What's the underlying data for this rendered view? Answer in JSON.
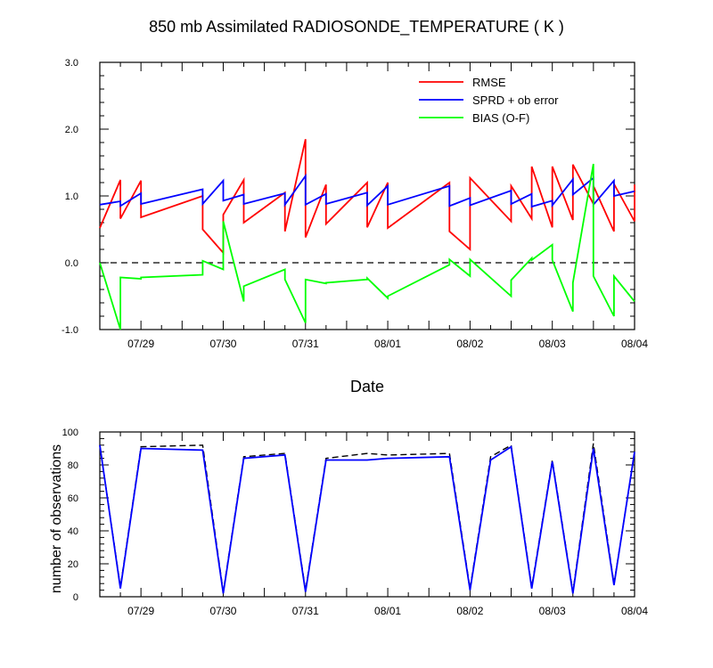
{
  "title": "850 mb Assimilated RADIOSONDE_TEMPERATURE ( K )",
  "chart_data": [
    {
      "type": "line",
      "title": "850 mb Assimilated RADIOSONDE_TEMPERATURE ( K )",
      "xlabel": "Date",
      "ylabel": "",
      "ylim": [
        -1.0,
        3.0
      ],
      "yticks": [
        "-1.0",
        "0.0",
        "1.0",
        "2.0",
        "3.0"
      ],
      "xticks": [
        "07/29",
        "07/30",
        "07/31",
        "08/01",
        "08/02",
        "08/03",
        "08/04"
      ],
      "xlim": [
        "2023-07-28T12:00",
        "2023-08-04T00:00"
      ],
      "reference_line": {
        "y": 0.0,
        "style": "dashed",
        "color": "#000000"
      },
      "legend_position": "top-right",
      "grid": false,
      "series": [
        {
          "name": "RMSE",
          "color": "#ff0000",
          "x": [
            "2023-07-28T12:00",
            "2023-07-28T18:00",
            "2023-07-28T18:00",
            "2023-07-29T00:00",
            "2023-07-29T00:00",
            "2023-07-29T18:00",
            "2023-07-29T18:00",
            "2023-07-30T00:00",
            "2023-07-30T00:00",
            "2023-07-30T06:00",
            "2023-07-30T06:00",
            "2023-07-30T18:00",
            "2023-07-30T18:00",
            "2023-07-31T00:00",
            "2023-07-31T00:00",
            "2023-07-31T06:00",
            "2023-07-31T06:00",
            "2023-07-31T18:00",
            "2023-07-31T18:00",
            "2023-08-01T00:00",
            "2023-08-01T00:00",
            "2023-08-01T18:00",
            "2023-08-01T18:00",
            "2023-08-02T00:00",
            "2023-08-02T00:00",
            "2023-08-02T12:00",
            "2023-08-02T12:00",
            "2023-08-02T18:00",
            "2023-08-02T18:00",
            "2023-08-03T00:00",
            "2023-08-03T00:00",
            "2023-08-03T06:00",
            "2023-08-03T06:00",
            "2023-08-03T12:00",
            "2023-08-03T12:00",
            "2023-08-03T18:00",
            "2023-08-03T18:00",
            "2023-08-04T00:00",
            "2023-08-04T00:00"
          ],
          "y": [
            0.52,
            1.24,
            0.66,
            1.23,
            0.68,
            1.0,
            0.5,
            0.15,
            0.72,
            1.24,
            0.6,
            1.05,
            0.47,
            1.85,
            0.38,
            1.17,
            0.58,
            1.2,
            0.53,
            1.2,
            0.52,
            1.2,
            0.47,
            0.2,
            1.27,
            0.62,
            1.15,
            0.66,
            1.44,
            0.53,
            1.44,
            0.64,
            1.47,
            0.88,
            1.15,
            0.47,
            1.18,
            0.62,
            1.17
          ]
        },
        {
          "name": "SPRD + ob error",
          "color": "#0000ff",
          "x": [
            "2023-07-28T12:00",
            "2023-07-28T18:00",
            "2023-07-28T18:00",
            "2023-07-29T00:00",
            "2023-07-29T00:00",
            "2023-07-29T18:00",
            "2023-07-29T18:00",
            "2023-07-30T00:00",
            "2023-07-30T00:00",
            "2023-07-30T06:00",
            "2023-07-30T06:00",
            "2023-07-30T18:00",
            "2023-07-30T18:00",
            "2023-07-31T00:00",
            "2023-07-31T00:00",
            "2023-07-31T06:00",
            "2023-07-31T06:00",
            "2023-07-31T18:00",
            "2023-07-31T18:00",
            "2023-08-01T00:00",
            "2023-08-01T00:00",
            "2023-08-01T18:00",
            "2023-08-01T18:00",
            "2023-08-02T00:00",
            "2023-08-02T00:00",
            "2023-08-02T12:00",
            "2023-08-02T12:00",
            "2023-08-02T18:00",
            "2023-08-02T18:00",
            "2023-08-03T00:00",
            "2023-08-03T00:00",
            "2023-08-03T06:00",
            "2023-08-03T06:00",
            "2023-08-03T12:00",
            "2023-08-03T12:00",
            "2023-08-03T18:00",
            "2023-08-03T18:00",
            "2023-08-04T00:00"
          ],
          "y": [
            0.87,
            0.92,
            0.85,
            1.04,
            0.88,
            1.1,
            0.88,
            1.23,
            0.93,
            1.02,
            0.88,
            1.04,
            0.87,
            1.3,
            0.87,
            1.03,
            0.88,
            1.05,
            0.86,
            1.15,
            0.87,
            1.15,
            0.85,
            0.97,
            0.86,
            1.08,
            0.88,
            1.03,
            0.84,
            0.93,
            0.86,
            1.25,
            1.02,
            1.27,
            0.87,
            1.23,
            1.0,
            1.07
          ]
        },
        {
          "name": "BIAS (O-F)",
          "color": "#00ff00",
          "x": [
            "2023-07-28T12:00",
            "2023-07-28T18:00",
            "2023-07-28T18:00",
            "2023-07-29T00:00",
            "2023-07-29T00:00",
            "2023-07-29T18:00",
            "2023-07-29T18:00",
            "2023-07-30T00:00",
            "2023-07-30T00:00",
            "2023-07-30T06:00",
            "2023-07-30T06:00",
            "2023-07-30T18:00",
            "2023-07-30T18:00",
            "2023-07-31T00:00",
            "2023-07-31T00:00",
            "2023-07-31T06:00",
            "2023-07-31T06:00",
            "2023-07-31T18:00",
            "2023-07-31T18:00",
            "2023-08-01T00:00",
            "2023-08-01T00:00",
            "2023-08-01T18:00",
            "2023-08-01T18:00",
            "2023-08-02T00:00",
            "2023-08-02T00:00",
            "2023-08-02T12:00",
            "2023-08-02T12:00",
            "2023-08-02T18:00",
            "2023-08-02T18:00",
            "2023-08-03T00:00",
            "2023-08-03T00:00",
            "2023-08-03T06:00",
            "2023-08-03T06:00",
            "2023-08-03T12:00",
            "2023-08-03T12:00",
            "2023-08-03T18:00",
            "2023-08-03T18:00",
            "2023-08-04T00:00"
          ],
          "y": [
            0.0,
            -1.0,
            -0.22,
            -0.24,
            -0.22,
            -0.18,
            0.03,
            -0.1,
            0.62,
            -0.58,
            -0.35,
            -0.1,
            -0.25,
            -0.9,
            -0.25,
            -0.31,
            -0.3,
            -0.25,
            -0.23,
            -0.53,
            -0.5,
            -0.03,
            0.05,
            -0.2,
            0.05,
            -0.5,
            -0.26,
            0.07,
            0.04,
            0.27,
            0.04,
            -0.73,
            -0.3,
            1.48,
            -0.2,
            -0.8,
            -0.2,
            -0.58
          ]
        }
      ]
    },
    {
      "type": "line",
      "title": "",
      "xlabel": "",
      "ylabel": "number of observations",
      "ylim": [
        0,
        100
      ],
      "yticks": [
        "0",
        "20",
        "40",
        "60",
        "80",
        "100"
      ],
      "xticks": [
        "07/29",
        "07/30",
        "07/31",
        "08/01",
        "08/02",
        "08/03",
        "08/04"
      ],
      "xlim": [
        "2023-07-28T12:00",
        "2023-08-04T00:00"
      ],
      "grid": false,
      "series": [
        {
          "name": "",
          "color": "#000000",
          "style": "dashed",
          "x": [
            "2023-07-28T12:00",
            "2023-07-28T18:00",
            "2023-07-29T00:00",
            "2023-07-29T18:00",
            "2023-07-30T00:00",
            "2023-07-30T06:00",
            "2023-07-30T18:00",
            "2023-07-31T00:00",
            "2023-07-31T06:00",
            "2023-07-31T18:00",
            "2023-08-01T00:00",
            "2023-08-01T18:00",
            "2023-08-02T00:00",
            "2023-08-02T06:00",
            "2023-08-02T12:00",
            "2023-08-02T18:00",
            "2023-08-03T00:00",
            "2023-08-03T06:00",
            "2023-08-03T12:00",
            "2023-08-03T18:00",
            "2023-08-04T00:00"
          ],
          "y": [
            92,
            6,
            91,
            92,
            3,
            85,
            87,
            4,
            84,
            87,
            86,
            87,
            5,
            85,
            92,
            6,
            83,
            3,
            93,
            8,
            87
          ]
        },
        {
          "name": "",
          "color": "#0000ff",
          "style": "solid",
          "x": [
            "2023-07-28T12:00",
            "2023-07-28T18:00",
            "2023-07-29T00:00",
            "2023-07-29T18:00",
            "2023-07-30T00:00",
            "2023-07-30T06:00",
            "2023-07-30T18:00",
            "2023-07-31T00:00",
            "2023-07-31T06:00",
            "2023-07-31T18:00",
            "2023-08-01T00:00",
            "2023-08-01T18:00",
            "2023-08-02T00:00",
            "2023-08-02T06:00",
            "2023-08-02T12:00",
            "2023-08-02T18:00",
            "2023-08-03T00:00",
            "2023-08-03T06:00",
            "2023-08-03T12:00",
            "2023-08-03T18:00",
            "2023-08-04T00:00"
          ],
          "y": [
            92,
            5,
            90,
            89,
            2,
            84,
            86,
            3,
            83,
            83,
            84,
            85,
            4,
            83,
            91,
            5,
            82,
            2,
            90,
            7,
            88
          ]
        }
      ]
    }
  ]
}
